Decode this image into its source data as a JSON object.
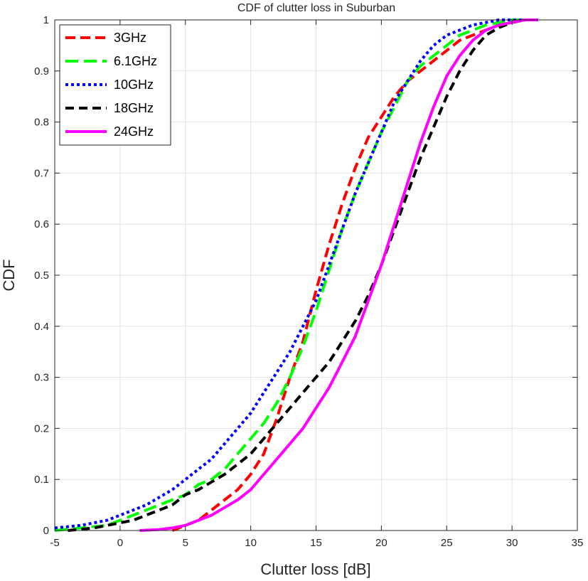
{
  "chart_data": {
    "type": "line",
    "title": "CDF of clutter loss in Suburban",
    "xlabel": "Clutter loss [dB]",
    "ylabel": "CDF",
    "xlim": [
      -5,
      35
    ],
    "ylim": [
      0,
      1
    ],
    "xticks": [
      -5,
      0,
      5,
      10,
      15,
      20,
      25,
      30,
      35
    ],
    "yticks": [
      0,
      0.1,
      0.2,
      0.3,
      0.4,
      0.5,
      0.6,
      0.7,
      0.8,
      0.9,
      1
    ],
    "grid": true,
    "legend_position": "top-left",
    "series": [
      {
        "name": "3GHz",
        "color": "#ff0000",
        "dash": "14 7",
        "x": [
          4,
          5,
          6,
          7,
          8,
          9,
          10,
          11,
          12,
          13,
          14,
          15,
          16,
          17,
          18,
          19,
          20,
          21,
          22,
          23,
          24,
          25,
          26,
          27,
          28,
          29,
          30,
          31,
          32
        ],
        "y": [
          0,
          0.01,
          0.02,
          0.04,
          0.06,
          0.08,
          0.11,
          0.15,
          0.22,
          0.3,
          0.37,
          0.47,
          0.56,
          0.64,
          0.71,
          0.77,
          0.81,
          0.85,
          0.88,
          0.9,
          0.92,
          0.94,
          0.96,
          0.97,
          0.98,
          0.99,
          0.995,
          1.0,
          1.0
        ]
      },
      {
        "name": "6.1GHz",
        "color": "#00ff00",
        "dash": "18 8",
        "x": [
          -5,
          -3,
          -1,
          0,
          1,
          2,
          3,
          4,
          5,
          6,
          7,
          8,
          9,
          10,
          11,
          12,
          13,
          14,
          15,
          16,
          17,
          18,
          19,
          20,
          21,
          22,
          23,
          24,
          25,
          26,
          27,
          28,
          29,
          30,
          31,
          32
        ],
        "y": [
          0,
          0.005,
          0.01,
          0.02,
          0.03,
          0.04,
          0.05,
          0.06,
          0.07,
          0.09,
          0.1,
          0.12,
          0.15,
          0.18,
          0.21,
          0.25,
          0.3,
          0.36,
          0.43,
          0.51,
          0.59,
          0.66,
          0.72,
          0.78,
          0.83,
          0.88,
          0.91,
          0.93,
          0.95,
          0.97,
          0.98,
          0.99,
          0.995,
          1.0,
          1.0,
          1.0
        ]
      },
      {
        "name": "10GHz",
        "color": "#0000ff",
        "dash": "4 4",
        "x": [
          -5,
          -3,
          -1,
          0,
          1,
          2,
          3,
          4,
          5,
          6,
          7,
          8,
          9,
          10,
          11,
          12,
          13,
          14,
          15,
          16,
          17,
          18,
          19,
          20,
          21,
          22,
          23,
          24,
          25,
          26,
          27,
          28,
          29,
          30,
          31,
          32
        ],
        "y": [
          0.005,
          0.01,
          0.02,
          0.03,
          0.04,
          0.05,
          0.065,
          0.08,
          0.1,
          0.12,
          0.14,
          0.17,
          0.2,
          0.23,
          0.27,
          0.31,
          0.35,
          0.4,
          0.45,
          0.52,
          0.59,
          0.66,
          0.72,
          0.78,
          0.84,
          0.88,
          0.92,
          0.95,
          0.97,
          0.98,
          0.99,
          0.995,
          1.0,
          1.0,
          1.0,
          1.0
        ]
      },
      {
        "name": "18GHz",
        "color": "#000000",
        "dash": "12 7",
        "x": [
          -4,
          -2,
          -1,
          0,
          1,
          2,
          3,
          4,
          5,
          6,
          7,
          8,
          9,
          10,
          11,
          12,
          13,
          14,
          15,
          16,
          17,
          18,
          19,
          20,
          21,
          22,
          23,
          24,
          25,
          26,
          27,
          28,
          29,
          30,
          31,
          32
        ],
        "y": [
          0,
          0.005,
          0.01,
          0.015,
          0.02,
          0.03,
          0.04,
          0.05,
          0.07,
          0.08,
          0.095,
          0.11,
          0.13,
          0.15,
          0.18,
          0.21,
          0.24,
          0.27,
          0.3,
          0.33,
          0.37,
          0.41,
          0.46,
          0.52,
          0.59,
          0.66,
          0.73,
          0.79,
          0.85,
          0.9,
          0.94,
          0.97,
          0.985,
          0.995,
          1.0,
          1.0
        ]
      },
      {
        "name": "24GHz",
        "color": "#ff00ff",
        "dash": "",
        "x": [
          1.5,
          3,
          4,
          5,
          6,
          7,
          8,
          9,
          10,
          11,
          12,
          13,
          14,
          15,
          16,
          17,
          18,
          19,
          20,
          21,
          22,
          23,
          24,
          25,
          26,
          27,
          28,
          29,
          30,
          31,
          32
        ],
        "y": [
          0,
          0.002,
          0.005,
          0.01,
          0.02,
          0.03,
          0.045,
          0.06,
          0.08,
          0.11,
          0.14,
          0.17,
          0.2,
          0.24,
          0.28,
          0.33,
          0.38,
          0.45,
          0.52,
          0.6,
          0.68,
          0.76,
          0.83,
          0.89,
          0.93,
          0.96,
          0.98,
          0.99,
          0.995,
          1.0,
          1.0
        ]
      }
    ]
  }
}
